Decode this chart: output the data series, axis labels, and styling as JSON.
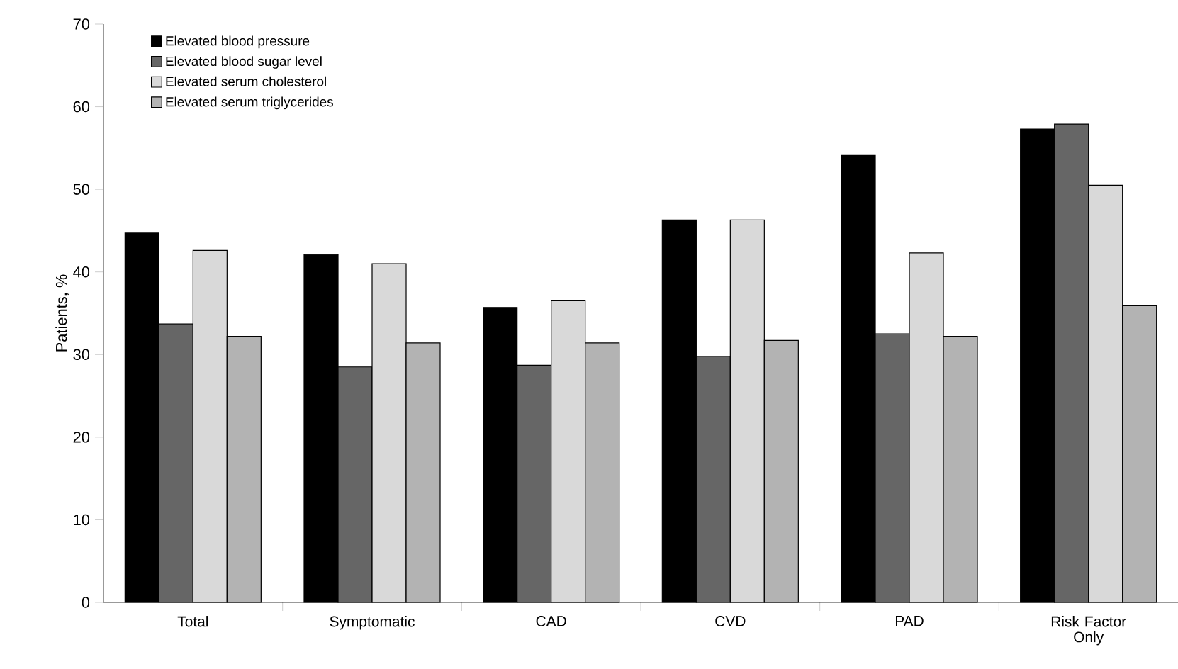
{
  "chart_data": {
    "type": "bar",
    "ylabel": "Patients, %",
    "categories": [
      "Total",
      "Symptomatic",
      "CAD",
      "CVD",
      "PAD",
      "Risk Factor Only"
    ],
    "series": [
      {
        "name": "Elevated blood pressure",
        "color": "#000000",
        "values": [
          44.7,
          42.1,
          35.7,
          46.3,
          54.1,
          57.3
        ]
      },
      {
        "name": "Elevated blood sugar level",
        "color": "#666666",
        "values": [
          33.7,
          28.5,
          28.7,
          29.8,
          32.5,
          57.9
        ]
      },
      {
        "name": "Elevated serum cholesterol",
        "color": "#d9d9d9",
        "values": [
          42.6,
          41.0,
          36.5,
          46.3,
          42.3,
          50.5
        ]
      },
      {
        "name": "Elevated serum triglycerides",
        "color": "#b3b3b3",
        "values": [
          32.2,
          31.4,
          31.4,
          31.7,
          32.2,
          35.9
        ]
      }
    ],
    "ylim": [
      0,
      70
    ],
    "yticks": [
      0,
      10,
      20,
      30,
      40,
      50,
      60,
      70
    ],
    "grid": false,
    "legend": "top left"
  }
}
